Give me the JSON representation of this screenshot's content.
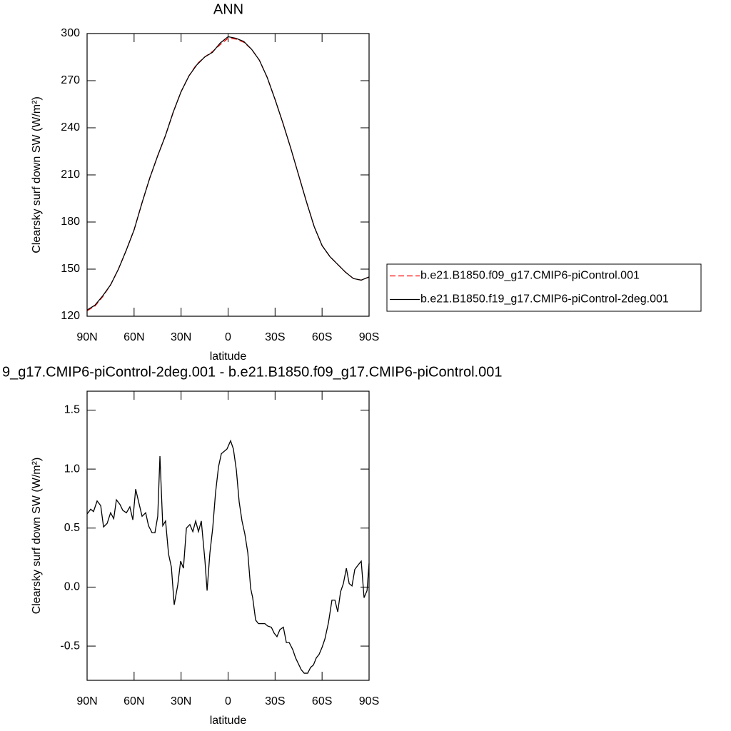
{
  "chart_data": [
    {
      "type": "line",
      "title": "ANN",
      "x_label": "latitude",
      "y_label": "Clearsky surf down SW (W/m²)",
      "x": [
        90,
        85,
        80,
        75,
        70,
        65,
        60,
        55,
        50,
        45,
        40,
        35,
        30,
        25,
        20,
        15,
        10,
        5,
        0,
        -5,
        -10,
        -15,
        -20,
        -25,
        -30,
        -35,
        -40,
        -45,
        -50,
        -55,
        -60,
        -65,
        -70,
        -75,
        -80,
        -85,
        -90
      ],
      "series": [
        {
          "name": "b.e21.B1850.f09_g17.CMIP6-piControl.001",
          "color": "#ff0000",
          "line_style": "dashed",
          "values": [
            123.5,
            126.5,
            132.5,
            140,
            150,
            162,
            175,
            192,
            208,
            222,
            235,
            250,
            263,
            273,
            280.5,
            285,
            288.5,
            293,
            297,
            296.5,
            294.5,
            290,
            283,
            272,
            258,
            243,
            227,
            210,
            193,
            177,
            165,
            158,
            153,
            148,
            144,
            143,
            145
          ]
        },
        {
          "name": "b.e21.B1850.f19_g17.CMIP6-piControl-2deg.001",
          "color": "#000000",
          "line_style": "solid",
          "values": [
            124,
            127,
            133,
            140,
            150,
            162,
            175,
            192,
            208,
            222,
            235,
            250,
            263,
            273,
            280,
            285,
            288,
            294,
            298,
            297,
            295,
            290,
            283,
            272,
            258,
            243,
            227,
            210,
            193,
            177,
            165,
            158,
            153,
            148,
            144,
            143,
            145
          ]
        }
      ],
      "xlim": [
        90,
        -90
      ],
      "xticks": [
        {
          "value": 90,
          "label": "90N"
        },
        {
          "value": 60,
          "label": "60N"
        },
        {
          "value": 30,
          "label": "30N"
        },
        0,
        {
          "value": -30,
          "label": "30S"
        },
        {
          "value": -60,
          "label": "60S"
        },
        {
          "value": -90,
          "label": "90S"
        }
      ],
      "ylim": [
        120,
        300
      ],
      "yticks": [
        120,
        150,
        180,
        210,
        240,
        270,
        300
      ],
      "legend": "right"
    },
    {
      "type": "line",
      "title": "9_g17.CMIP6-piControl-2deg.001 - b.e21.B1850.f09_g17.CMIP6-piControl.001",
      "x_label": "latitude",
      "y_label": "Clearsky surf down SW (W/m²)",
      "x": [
        90,
        87.7,
        85.9,
        83.6,
        81.3,
        79.5,
        77.2,
        75,
        73,
        71.3,
        69,
        67.2,
        64.9,
        62.7,
        60.8,
        59,
        56.7,
        54.9,
        52.6,
        50.8,
        48.5,
        46.7,
        44.9,
        43.5,
        41.7,
        39.9,
        38,
        36.2,
        34.4,
        32.1,
        30.3,
        28.5,
        26.6,
        24.4,
        22.5,
        20.7,
        18.9,
        17.1,
        14.8,
        13.4,
        11.6,
        9.8,
        8,
        6.1,
        4.3,
        2.5,
        0.7,
        -1.6,
        -3.4,
        -5.3,
        -7.1,
        -8.9,
        -10.7,
        -12.6,
        -14.4,
        -15.7,
        -17.6,
        -19.4,
        -21.2,
        -23.5,
        -25.3,
        -27.6,
        -29.4,
        -31.2,
        -33.1,
        -35.3,
        -37.2,
        -39,
        -41.3,
        -43.1,
        -44.9,
        -46.7,
        -48.6,
        -50.8,
        -52.7,
        -54.5,
        -56.3,
        -58.1,
        -60,
        -61.8,
        -64.1,
        -66.3,
        -68.2,
        -70,
        -71.8,
        -73.6,
        -75.5,
        -77.3,
        -79.1,
        -80.9,
        -83.2,
        -85,
        -86.8,
        -88.7,
        -90
      ],
      "series": [
        {
          "color": "#000000",
          "line_style": "solid",
          "values": [
            0.62,
            0.66,
            0.64,
            0.73,
            0.69,
            0.51,
            0.54,
            0.63,
            0.58,
            0.74,
            0.7,
            0.65,
            0.63,
            0.68,
            0.57,
            0.83,
            0.7,
            0.6,
            0.63,
            0.52,
            0.46,
            0.46,
            0.6,
            1.11,
            0.52,
            0.56,
            0.28,
            0.17,
            -0.15,
            0.02,
            0.22,
            0.16,
            0.5,
            0.53,
            0.47,
            0.56,
            0.47,
            0.56,
            0.23,
            -0.03,
            0.29,
            0.5,
            0.8,
            1.02,
            1.13,
            1.15,
            1.17,
            1.24,
            1.17,
            0.99,
            0.72,
            0.56,
            0.45,
            0.29,
            -0.01,
            -0.09,
            -0.28,
            -0.31,
            -0.31,
            -0.31,
            -0.33,
            -0.34,
            -0.39,
            -0.42,
            -0.36,
            -0.34,
            -0.47,
            -0.47,
            -0.53,
            -0.6,
            -0.65,
            -0.7,
            -0.73,
            -0.73,
            -0.68,
            -0.66,
            -0.6,
            -0.57,
            -0.51,
            -0.44,
            -0.3,
            -0.11,
            -0.11,
            -0.21,
            -0.04,
            0.03,
            0.16,
            0.03,
            0.01,
            0.15,
            0.19,
            0.22,
            -0.09,
            -0.03,
            0.2
          ]
        }
      ],
      "xlim": [
        90,
        -90
      ],
      "xticks": [
        {
          "value": 90,
          "label": "90N"
        },
        {
          "value": 60,
          "label": "60N"
        },
        {
          "value": 30,
          "label": "30N"
        },
        0,
        {
          "value": -30,
          "label": "30S"
        },
        {
          "value": -60,
          "label": "60S"
        },
        {
          "value": -90,
          "label": "90S"
        }
      ],
      "ylim": [
        -0.79,
        1.66
      ],
      "yticks": [
        -0.5,
        {
          "value": 0,
          "label": "0.0"
        },
        0.5,
        {
          "value": 1,
          "label": "1.0"
        },
        1.5
      ]
    }
  ]
}
